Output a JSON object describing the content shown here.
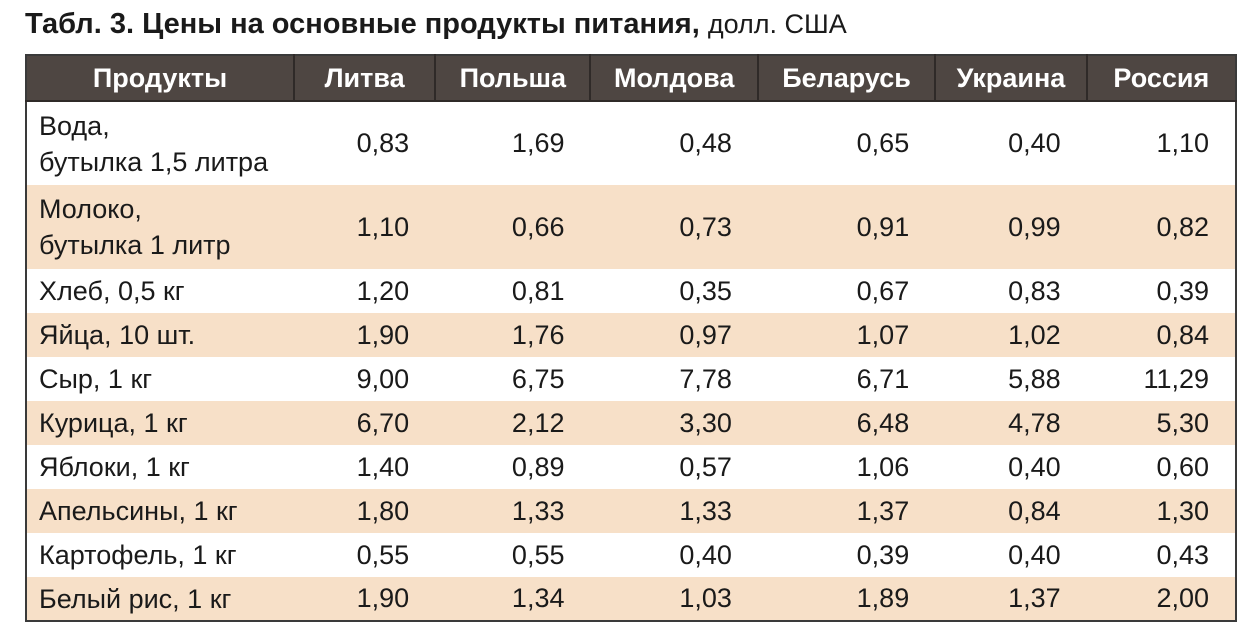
{
  "title": {
    "main": "Табл. 3. Цены на основные продукты питания,",
    "unit": "долл. США"
  },
  "table": {
    "headers": [
      "Продукты",
      "Литва",
      "Польша",
      "Молдова",
      "Беларусь",
      "Украина",
      "Россия"
    ],
    "rows": [
      {
        "name_line1": "Вода,",
        "name_line2": "бутылка 1,5 литра",
        "values": [
          "0,83",
          "1,69",
          "0,48",
          "0,65",
          "0,40",
          "1,10"
        ]
      },
      {
        "name_line1": "Молоко,",
        "name_line2": "бутылка 1 литр",
        "values": [
          "1,10",
          "0,66",
          "0,73",
          "0,91",
          "0,99",
          "0,82"
        ]
      },
      {
        "name_line1": "Хлеб, 0,5 кг",
        "name_line2": "",
        "values": [
          "1,20",
          "0,81",
          "0,35",
          "0,67",
          "0,83",
          "0,39"
        ]
      },
      {
        "name_line1": "Яйца, 10 шт.",
        "name_line2": "",
        "values": [
          "1,90",
          "1,76",
          "0,97",
          "1,07",
          "1,02",
          "0,84"
        ]
      },
      {
        "name_line1": "Сыр, 1 кг",
        "name_line2": "",
        "values": [
          "9,00",
          "6,75",
          "7,78",
          "6,71",
          "5,88",
          "11,29"
        ]
      },
      {
        "name_line1": "Курица, 1 кг",
        "name_line2": "",
        "values": [
          "6,70",
          "2,12",
          "3,30",
          "6,48",
          "4,78",
          "5,30"
        ]
      },
      {
        "name_line1": "Яблоки, 1 кг",
        "name_line2": "",
        "values": [
          "1,40",
          "0,89",
          "0,57",
          "1,06",
          "0,40",
          "0,60"
        ]
      },
      {
        "name_line1": "Апельсины, 1 кг",
        "name_line2": "",
        "values": [
          "1,80",
          "1,33",
          "1,33",
          "1,37",
          "0,84",
          "1,30"
        ]
      },
      {
        "name_line1": "Картофель, 1 кг",
        "name_line2": "",
        "values": [
          "0,55",
          "0,55",
          "0,40",
          "0,39",
          "0,40",
          "0,43"
        ]
      },
      {
        "name_line1": "Белый рис, 1 кг",
        "name_line2": "",
        "values": [
          "1,90",
          "1,34",
          "1,03",
          "1,89",
          "1,37",
          "2,00"
        ]
      }
    ]
  },
  "colors": {
    "header_bg": "#4e4642",
    "stripe_bg": "#f7e0c8",
    "border": "#3a3a3a"
  }
}
